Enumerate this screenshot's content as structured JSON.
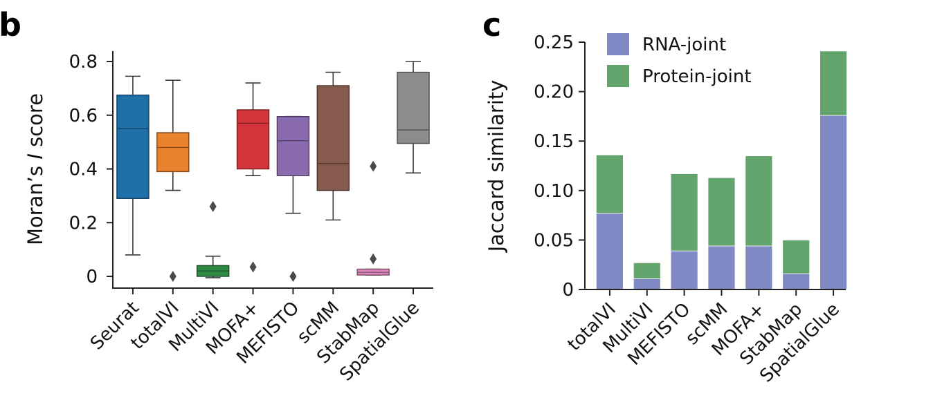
{
  "panels": {
    "b": {
      "letter": "b"
    },
    "c": {
      "letter": "c"
    }
  },
  "chart_data": [
    {
      "panel": "b",
      "type": "box",
      "ylabel_parts": [
        "Moran’s ",
        "I",
        " score"
      ],
      "ylim": [
        -0.05,
        0.84
      ],
      "yticks": [
        0,
        0.2,
        0.4,
        0.6,
        0.8
      ],
      "ytick_labels": [
        "0",
        "0.2",
        "0.4",
        "0.6",
        "0.8"
      ],
      "grid": false,
      "categories": [
        "Seurat",
        "totalVI",
        "MultiVI",
        "MOFA+",
        "MEFISTO",
        "scMM",
        "StabMap",
        "SpatialGlue"
      ],
      "boxes": [
        {
          "name": "Seurat",
          "color": "#1f6fa8",
          "whisker_low": 0.08,
          "q1": 0.29,
          "median": 0.55,
          "q3": 0.675,
          "whisker_high": 0.745,
          "outliers": []
        },
        {
          "name": "totalVI",
          "color": "#e8822d",
          "whisker_low": 0.32,
          "q1": 0.39,
          "median": 0.48,
          "q3": 0.535,
          "whisker_high": 0.73,
          "outliers": [
            0.0
          ]
        },
        {
          "name": "MultiVI",
          "color": "#2e8b44",
          "whisker_low": -0.005,
          "q1": 0.0,
          "median": 0.02,
          "q3": 0.04,
          "whisker_high": 0.075,
          "outliers": [
            0.26
          ]
        },
        {
          "name": "MOFA+",
          "color": "#d2363b",
          "whisker_low": 0.375,
          "q1": 0.4,
          "median": 0.57,
          "q3": 0.62,
          "whisker_high": 0.72,
          "outliers": [
            0.035
          ]
        },
        {
          "name": "MEFISTO",
          "color": "#8a6bb0",
          "whisker_low": 0.235,
          "q1": 0.375,
          "median": 0.505,
          "q3": 0.595,
          "whisker_high": 0.595,
          "outliers": [
            0.0
          ]
        },
        {
          "name": "scMM",
          "color": "#875a4e",
          "whisker_low": 0.21,
          "q1": 0.32,
          "median": 0.42,
          "q3": 0.71,
          "whisker_high": 0.76,
          "outliers": []
        },
        {
          "name": "StabMap",
          "color": "#dd88bd",
          "whisker_low": 0.005,
          "q1": 0.005,
          "median": 0.015,
          "q3": 0.027,
          "whisker_high": 0.027,
          "outliers": [
            0.065,
            0.41
          ]
        },
        {
          "name": "SpatialGlue",
          "color": "#8c8c8c",
          "whisker_low": 0.385,
          "q1": 0.495,
          "median": 0.545,
          "q3": 0.76,
          "whisker_high": 0.8,
          "outliers": []
        }
      ]
    },
    {
      "panel": "c",
      "type": "bar",
      "stacked": true,
      "ylabel": "Jaccard similarity",
      "ylim": [
        0,
        0.25
      ],
      "yticks": [
        0,
        0.05,
        0.1,
        0.15,
        0.2,
        0.25
      ],
      "ytick_labels": [
        "0",
        "0.05",
        "0.10",
        "0.15",
        "0.20",
        "0.25"
      ],
      "grid": false,
      "legend_position": "top-left",
      "categories": [
        "totalVI",
        "MultiVI",
        "MEFISTO",
        "scMM",
        "MOFA+",
        "StabMap",
        "SpatialGlue"
      ],
      "series": [
        {
          "name": "RNA-joint",
          "color": "#7f89c4",
          "values": [
            0.077,
            0.011,
            0.039,
            0.044,
            0.044,
            0.016,
            0.176
          ]
        },
        {
          "name": "Protein-joint",
          "color": "#63a46c",
          "values": [
            0.059,
            0.016,
            0.078,
            0.069,
            0.091,
            0.034,
            0.065
          ]
        }
      ]
    }
  ]
}
